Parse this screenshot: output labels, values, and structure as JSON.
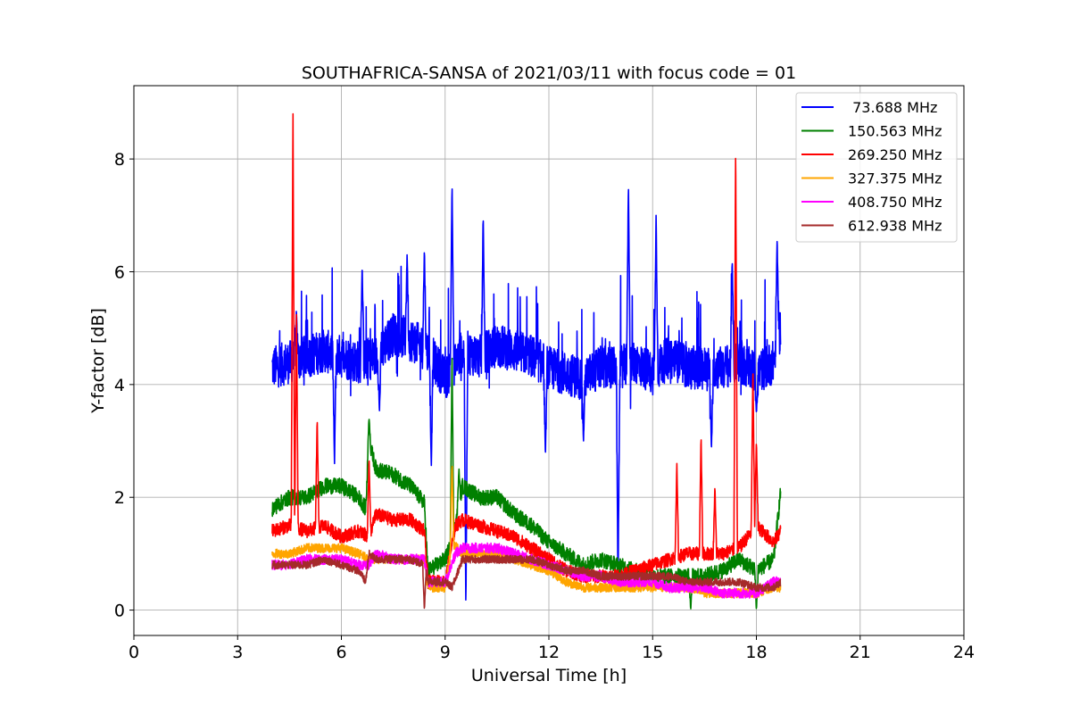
{
  "chart_data": {
    "type": "line",
    "title": "SOUTHAFRICA-SANSA of 2021/03/11 with focus code = 01",
    "xlabel": "Universal Time [h]",
    "ylabel": "Y-factor [dB]",
    "xlim": [
      0,
      24
    ],
    "ylim": [
      -0.45,
      9.3
    ],
    "xticks": [
      0,
      3,
      6,
      9,
      12,
      15,
      18,
      21,
      24
    ],
    "yticks": [
      0,
      2,
      4,
      6,
      8
    ],
    "grid": true,
    "legend_position": "top-right",
    "series": [
      {
        "name": " 73.688 MHz",
        "color": "#0000ff",
        "x": [
          4.0,
          4.5,
          5.0,
          5.5,
          6.0,
          6.5,
          7.0,
          7.5,
          8.0,
          8.5,
          9.0,
          9.5,
          10.0,
          10.5,
          11.0,
          11.5,
          12.0,
          12.5,
          13.0,
          13.5,
          14.0,
          14.5,
          15.0,
          15.5,
          16.0,
          16.5,
          17.0,
          17.5,
          18.0,
          18.5,
          18.7
        ],
        "y": [
          4.3,
          4.4,
          4.5,
          4.6,
          4.5,
          4.4,
          4.5,
          4.9,
          4.8,
          4.6,
          4.1,
          4.6,
          4.5,
          4.7,
          4.6,
          4.5,
          4.3,
          4.2,
          4.1,
          4.3,
          4.3,
          4.4,
          4.2,
          4.5,
          4.3,
          4.3,
          4.3,
          4.4,
          4.2,
          4.4,
          5.0
        ],
        "spikes": [
          [
            4.7,
            5.3
          ],
          [
            5.8,
            2.6
          ],
          [
            6.6,
            6.1
          ],
          [
            7.1,
            3.5
          ],
          [
            7.9,
            6.3
          ],
          [
            8.4,
            6.4
          ],
          [
            8.6,
            2.5
          ],
          [
            9.2,
            7.6
          ],
          [
            9.6,
            0.0
          ],
          [
            10.1,
            7.0
          ],
          [
            11.9,
            2.7
          ],
          [
            13.0,
            3.0
          ],
          [
            14.0,
            0.3
          ],
          [
            14.3,
            7.6
          ],
          [
            15.1,
            7.0
          ],
          [
            16.7,
            2.8
          ],
          [
            17.3,
            6.2
          ],
          [
            18.0,
            3.5
          ],
          [
            18.6,
            6.6
          ]
        ]
      },
      {
        "name": "150.563 MHz",
        "color": "#008000",
        "x": [
          4.0,
          4.5,
          5.0,
          5.5,
          6.0,
          6.5,
          6.7,
          6.8,
          7.0,
          7.5,
          8.0,
          8.4,
          8.5,
          9.0,
          9.2,
          9.5,
          10.0,
          10.5,
          11.0,
          11.5,
          12.0,
          12.5,
          13.0,
          13.5,
          14.0,
          14.5,
          15.0,
          15.5,
          16.0,
          16.5,
          17.0,
          17.5,
          18.0,
          18.5,
          18.7
        ],
        "y": [
          1.8,
          2.0,
          2.0,
          2.2,
          2.2,
          2.0,
          1.8,
          3.0,
          2.5,
          2.4,
          2.2,
          1.9,
          0.7,
          0.9,
          1.2,
          2.2,
          2.0,
          2.0,
          1.7,
          1.5,
          1.2,
          1.0,
          0.8,
          0.9,
          0.8,
          0.7,
          0.6,
          0.6,
          0.6,
          0.6,
          0.7,
          0.9,
          0.7,
          0.9,
          2.1
        ],
        "spikes": [
          [
            6.8,
            3.4
          ],
          [
            9.2,
            4.6
          ],
          [
            9.4,
            2.5
          ],
          [
            16.1,
            0.0
          ],
          [
            18.0,
            0.0
          ]
        ]
      },
      {
        "name": "269.250 MHz",
        "color": "#ff0000",
        "x": [
          4.0,
          4.5,
          5.0,
          5.5,
          6.0,
          6.5,
          6.8,
          7.0,
          7.5,
          8.0,
          8.4,
          8.5,
          9.0,
          9.3,
          9.5,
          10.0,
          10.5,
          11.0,
          11.5,
          12.0,
          12.5,
          13.0,
          13.5,
          14.0,
          14.5,
          15.0,
          15.5,
          16.0,
          16.5,
          17.0,
          17.5,
          18.0,
          18.5,
          18.7
        ],
        "y": [
          1.4,
          1.5,
          1.4,
          1.5,
          1.3,
          1.4,
          1.3,
          1.7,
          1.6,
          1.6,
          1.4,
          0.5,
          0.5,
          1.5,
          1.6,
          1.5,
          1.4,
          1.3,
          1.1,
          0.9,
          0.7,
          0.6,
          0.6,
          0.6,
          0.7,
          0.8,
          0.9,
          1.0,
          1.0,
          1.0,
          1.1,
          1.5,
          1.2,
          1.4
        ],
        "spikes": [
          [
            4.6,
            8.8
          ],
          [
            4.7,
            5.4
          ],
          [
            5.3,
            3.4
          ],
          [
            6.8,
            2.7
          ],
          [
            15.7,
            2.6
          ],
          [
            16.4,
            3.1
          ],
          [
            16.8,
            2.2
          ],
          [
            17.4,
            8.3
          ],
          [
            17.9,
            4.3
          ],
          [
            18.0,
            3.0
          ]
        ]
      },
      {
        "name": "327.375 MHz",
        "color": "#ffa500",
        "x": [
          4.0,
          4.5,
          5.0,
          5.5,
          6.0,
          6.5,
          6.8,
          7.0,
          7.5,
          8.0,
          8.4,
          8.5,
          9.0,
          9.2,
          9.5,
          10.0,
          10.5,
          11.0,
          11.5,
          12.0,
          12.5,
          13.0,
          13.5,
          14.0,
          14.5,
          15.0,
          15.5,
          16.0,
          16.5,
          17.0,
          17.5,
          18.0,
          18.5,
          18.7
        ],
        "y": [
          1.0,
          1.0,
          1.1,
          1.1,
          1.1,
          1.0,
          0.9,
          0.9,
          0.9,
          0.9,
          0.9,
          0.4,
          0.4,
          1.2,
          1.0,
          1.0,
          1.0,
          0.9,
          0.8,
          0.7,
          0.5,
          0.4,
          0.4,
          0.4,
          0.4,
          0.4,
          0.4,
          0.4,
          0.3,
          0.3,
          0.3,
          0.3,
          0.4,
          0.4
        ],
        "spikes": [
          [
            9.2,
            2.6
          ]
        ]
      },
      {
        "name": "408.750 MHz",
        "color": "#ff00ff",
        "x": [
          4.0,
          4.5,
          5.0,
          5.5,
          6.0,
          6.5,
          6.8,
          7.0,
          7.5,
          8.0,
          8.4,
          8.5,
          9.0,
          9.3,
          9.5,
          10.0,
          10.5,
          11.0,
          11.5,
          12.0,
          12.5,
          13.0,
          13.5,
          14.0,
          14.5,
          15.0,
          15.5,
          16.0,
          16.5,
          17.0,
          17.5,
          18.0,
          18.5,
          18.7
        ],
        "y": [
          0.8,
          0.8,
          0.9,
          0.9,
          0.9,
          0.8,
          0.8,
          1.0,
          0.9,
          0.9,
          0.9,
          0.5,
          0.5,
          1.0,
          1.1,
          1.1,
          1.1,
          1.0,
          0.9,
          0.8,
          0.7,
          0.6,
          0.6,
          0.5,
          0.5,
          0.5,
          0.4,
          0.4,
          0.4,
          0.3,
          0.3,
          0.3,
          0.5,
          0.5
        ]
      },
      {
        "name": "612.938 MHz",
        "color": "#a52a2a",
        "x": [
          4.0,
          4.5,
          5.0,
          5.5,
          6.0,
          6.5,
          6.7,
          6.8,
          7.0,
          7.5,
          8.0,
          8.4,
          8.5,
          9.0,
          9.2,
          9.5,
          10.0,
          10.5,
          11.0,
          11.5,
          12.0,
          12.5,
          13.0,
          13.5,
          14.0,
          14.5,
          15.0,
          15.5,
          16.0,
          16.5,
          17.0,
          17.5,
          18.0,
          18.5,
          18.7
        ],
        "y": [
          0.8,
          0.8,
          0.8,
          0.9,
          0.8,
          0.7,
          0.5,
          1.0,
          0.9,
          0.9,
          0.9,
          0.8,
          0.5,
          0.5,
          0.4,
          0.9,
          0.9,
          0.9,
          0.9,
          0.9,
          0.8,
          0.7,
          0.7,
          0.6,
          0.6,
          0.6,
          0.6,
          0.6,
          0.5,
          0.5,
          0.5,
          0.5,
          0.4,
          0.4,
          0.5
        ],
        "spikes": [
          [
            8.4,
            0.0
          ]
        ]
      }
    ]
  }
}
